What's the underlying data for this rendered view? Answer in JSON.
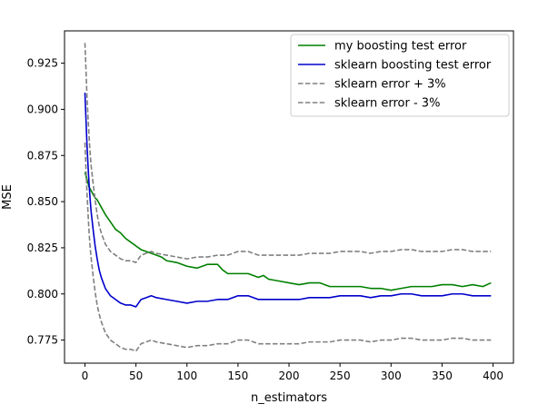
{
  "chart_data": {
    "type": "line",
    "title": "",
    "xlabel": "n_estimators",
    "ylabel": "MSE",
    "xlim": [
      -20,
      420
    ],
    "ylim": [
      0.7625,
      0.9425
    ],
    "xticks": [
      0,
      50,
      100,
      150,
      200,
      250,
      300,
      350,
      400
    ],
    "yticks": [
      0.775,
      0.8,
      0.825,
      0.85,
      0.875,
      0.9,
      0.925
    ],
    "xtick_labels": [
      "0",
      "50",
      "100",
      "150",
      "200",
      "250",
      "300",
      "350",
      "400"
    ],
    "ytick_labels": [
      "0.775",
      "0.800",
      "0.825",
      "0.850",
      "0.875",
      "0.900",
      "0.925"
    ],
    "grid": false,
    "legend_position": "top-right",
    "series": [
      {
        "name": "my boosting test error",
        "color": "#008000",
        "style": "solid",
        "points": [
          [
            0,
            0.866
          ],
          [
            2,
            0.862
          ],
          [
            4,
            0.858
          ],
          [
            6,
            0.856
          ],
          [
            8,
            0.854
          ],
          [
            10,
            0.852
          ],
          [
            12,
            0.851
          ],
          [
            14,
            0.849
          ],
          [
            16,
            0.847
          ],
          [
            18,
            0.845
          ],
          [
            20,
            0.843
          ],
          [
            25,
            0.839
          ],
          [
            30,
            0.835
          ],
          [
            35,
            0.833
          ],
          [
            40,
            0.83
          ],
          [
            45,
            0.828
          ],
          [
            50,
            0.826
          ],
          [
            55,
            0.824
          ],
          [
            60,
            0.823
          ],
          [
            65,
            0.822
          ],
          [
            70,
            0.821
          ],
          [
            75,
            0.82
          ],
          [
            80,
            0.818
          ],
          [
            90,
            0.817
          ],
          [
            100,
            0.815
          ],
          [
            110,
            0.814
          ],
          [
            115,
            0.815
          ],
          [
            120,
            0.816
          ],
          [
            130,
            0.816
          ],
          [
            135,
            0.813
          ],
          [
            140,
            0.811
          ],
          [
            150,
            0.811
          ],
          [
            160,
            0.811
          ],
          [
            170,
            0.809
          ],
          [
            175,
            0.81
          ],
          [
            180,
            0.808
          ],
          [
            190,
            0.807
          ],
          [
            200,
            0.806
          ],
          [
            210,
            0.805
          ],
          [
            220,
            0.806
          ],
          [
            230,
            0.806
          ],
          [
            240,
            0.804
          ],
          [
            250,
            0.804
          ],
          [
            260,
            0.804
          ],
          [
            270,
            0.804
          ],
          [
            280,
            0.803
          ],
          [
            290,
            0.803
          ],
          [
            300,
            0.802
          ],
          [
            310,
            0.803
          ],
          [
            320,
            0.804
          ],
          [
            330,
            0.804
          ],
          [
            340,
            0.804
          ],
          [
            350,
            0.805
          ],
          [
            360,
            0.805
          ],
          [
            370,
            0.804
          ],
          [
            380,
            0.805
          ],
          [
            390,
            0.804
          ],
          [
            398,
            0.806
          ]
        ]
      },
      {
        "name": "sklearn boosting test error",
        "color": "#0000cc",
        "style": "solid",
        "points": [
          [
            0,
            0.909
          ],
          [
            1,
            0.895
          ],
          [
            2,
            0.881
          ],
          [
            3,
            0.87
          ],
          [
            4,
            0.86
          ],
          [
            5,
            0.852
          ],
          [
            6,
            0.845
          ],
          [
            8,
            0.835
          ],
          [
            10,
            0.826
          ],
          [
            12,
            0.819
          ],
          [
            14,
            0.813
          ],
          [
            16,
            0.809
          ],
          [
            18,
            0.806
          ],
          [
            20,
            0.803
          ],
          [
            25,
            0.799
          ],
          [
            30,
            0.797
          ],
          [
            35,
            0.795
          ],
          [
            40,
            0.794
          ],
          [
            45,
            0.794
          ],
          [
            50,
            0.793
          ],
          [
            55,
            0.797
          ],
          [
            60,
            0.798
          ],
          [
            65,
            0.799
          ],
          [
            70,
            0.798
          ],
          [
            80,
            0.797
          ],
          [
            90,
            0.796
          ],
          [
            100,
            0.795
          ],
          [
            110,
            0.796
          ],
          [
            120,
            0.796
          ],
          [
            130,
            0.797
          ],
          [
            140,
            0.797
          ],
          [
            150,
            0.799
          ],
          [
            160,
            0.799
          ],
          [
            170,
            0.797
          ],
          [
            180,
            0.797
          ],
          [
            190,
            0.797
          ],
          [
            200,
            0.797
          ],
          [
            210,
            0.797
          ],
          [
            220,
            0.798
          ],
          [
            230,
            0.798
          ],
          [
            240,
            0.798
          ],
          [
            250,
            0.799
          ],
          [
            260,
            0.799
          ],
          [
            270,
            0.799
          ],
          [
            280,
            0.798
          ],
          [
            290,
            0.799
          ],
          [
            300,
            0.799
          ],
          [
            310,
            0.8
          ],
          [
            320,
            0.8
          ],
          [
            330,
            0.799
          ],
          [
            340,
            0.799
          ],
          [
            350,
            0.799
          ],
          [
            360,
            0.8
          ],
          [
            370,
            0.8
          ],
          [
            380,
            0.799
          ],
          [
            390,
            0.799
          ],
          [
            398,
            0.799
          ]
        ]
      },
      {
        "name": "sklearn error + 3%",
        "color": "#808080",
        "style": "dashed",
        "points": [
          [
            0,
            0.936
          ],
          [
            1,
            0.922
          ],
          [
            2,
            0.907
          ],
          [
            3,
            0.896
          ],
          [
            4,
            0.886
          ],
          [
            5,
            0.877
          ],
          [
            6,
            0.87
          ],
          [
            8,
            0.86
          ],
          [
            10,
            0.851
          ],
          [
            12,
            0.843
          ],
          [
            14,
            0.837
          ],
          [
            16,
            0.833
          ],
          [
            18,
            0.83
          ],
          [
            20,
            0.827
          ],
          [
            25,
            0.823
          ],
          [
            30,
            0.821
          ],
          [
            35,
            0.819
          ],
          [
            40,
            0.818
          ],
          [
            45,
            0.818
          ],
          [
            50,
            0.817
          ],
          [
            55,
            0.821
          ],
          [
            60,
            0.822
          ],
          [
            65,
            0.823
          ],
          [
            70,
            0.822
          ],
          [
            80,
            0.821
          ],
          [
            90,
            0.82
          ],
          [
            100,
            0.819
          ],
          [
            110,
            0.82
          ],
          [
            120,
            0.82
          ],
          [
            130,
            0.821
          ],
          [
            140,
            0.821
          ],
          [
            150,
            0.823
          ],
          [
            160,
            0.823
          ],
          [
            170,
            0.821
          ],
          [
            180,
            0.821
          ],
          [
            190,
            0.821
          ],
          [
            200,
            0.821
          ],
          [
            210,
            0.821
          ],
          [
            220,
            0.822
          ],
          [
            230,
            0.822
          ],
          [
            240,
            0.822
          ],
          [
            250,
            0.823
          ],
          [
            260,
            0.823
          ],
          [
            270,
            0.823
          ],
          [
            280,
            0.822
          ],
          [
            290,
            0.823
          ],
          [
            300,
            0.823
          ],
          [
            310,
            0.824
          ],
          [
            320,
            0.824
          ],
          [
            330,
            0.823
          ],
          [
            340,
            0.823
          ],
          [
            350,
            0.823
          ],
          [
            360,
            0.824
          ],
          [
            370,
            0.824
          ],
          [
            380,
            0.823
          ],
          [
            390,
            0.823
          ],
          [
            398,
            0.823
          ]
        ]
      },
      {
        "name": "sklearn error - 3%",
        "color": "#808080",
        "style": "dashed",
        "points": [
          [
            0,
            0.882
          ],
          [
            1,
            0.868
          ],
          [
            2,
            0.855
          ],
          [
            3,
            0.844
          ],
          [
            4,
            0.834
          ],
          [
            5,
            0.826
          ],
          [
            6,
            0.82
          ],
          [
            8,
            0.81
          ],
          [
            10,
            0.801
          ],
          [
            12,
            0.794
          ],
          [
            14,
            0.789
          ],
          [
            16,
            0.785
          ],
          [
            18,
            0.782
          ],
          [
            20,
            0.779
          ],
          [
            25,
            0.775
          ],
          [
            30,
            0.773
          ],
          [
            35,
            0.771
          ],
          [
            40,
            0.77
          ],
          [
            45,
            0.77
          ],
          [
            50,
            0.769
          ],
          [
            55,
            0.773
          ],
          [
            60,
            0.774
          ],
          [
            65,
            0.775
          ],
          [
            70,
            0.774
          ],
          [
            80,
            0.773
          ],
          [
            90,
            0.772
          ],
          [
            100,
            0.771
          ],
          [
            110,
            0.772
          ],
          [
            120,
            0.772
          ],
          [
            130,
            0.773
          ],
          [
            140,
            0.773
          ],
          [
            150,
            0.775
          ],
          [
            160,
            0.775
          ],
          [
            170,
            0.773
          ],
          [
            180,
            0.773
          ],
          [
            190,
            0.773
          ],
          [
            200,
            0.773
          ],
          [
            210,
            0.773
          ],
          [
            220,
            0.774
          ],
          [
            230,
            0.774
          ],
          [
            240,
            0.774
          ],
          [
            250,
            0.775
          ],
          [
            260,
            0.775
          ],
          [
            270,
            0.775
          ],
          [
            280,
            0.774
          ],
          [
            290,
            0.775
          ],
          [
            300,
            0.775
          ],
          [
            310,
            0.776
          ],
          [
            320,
            0.776
          ],
          [
            330,
            0.775
          ],
          [
            340,
            0.775
          ],
          [
            350,
            0.775
          ],
          [
            360,
            0.776
          ],
          [
            370,
            0.776
          ],
          [
            380,
            0.775
          ],
          [
            390,
            0.775
          ],
          [
            398,
            0.775
          ]
        ]
      }
    ]
  }
}
